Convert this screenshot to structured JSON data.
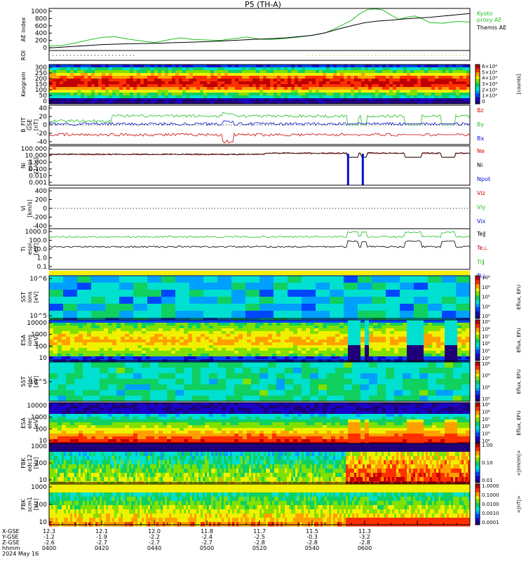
{
  "header": {
    "title": "P5 (TH-A)"
  },
  "panels": [
    {
      "key": "ae",
      "ylabel": "AE index",
      "ticks": [
        "1000",
        "800",
        "600",
        "400",
        "200",
        "0"
      ],
      "right_labels": [
        {
          "text": "Kyoto\nproxy AE",
          "color": "#22c022"
        },
        {
          "text": "Themis AE",
          "color": "#000000"
        }
      ]
    },
    {
      "key": "roi",
      "ylabel": "ROI",
      "ticks": [],
      "right_labels": []
    },
    {
      "key": "keogram",
      "ylabel": "Keogram",
      "ticks": [
        "300",
        "250",
        "200",
        "150",
        "100",
        "50",
        "0"
      ],
      "right_labels": []
    },
    {
      "key": "bfit",
      "ylabel": "B_FIT\nGSE\n[nT]",
      "ticks": [
        "40",
        "20",
        "0",
        "-20",
        "-40"
      ],
      "right_labels": [
        {
          "text": "Bz",
          "color": "#d00000"
        },
        {
          "text": "By",
          "color": "#22c022"
        },
        {
          "text": "Bx",
          "color": "#0010d0"
        }
      ]
    },
    {
      "key": "ni",
      "ylabel": "Ni\nespi\n[1/cc]",
      "ticks": [
        "100.000",
        "10.000",
        "1.000",
        "0.100",
        "0.010",
        "0.001"
      ],
      "right_labels": [
        {
          "text": "Ne",
          "color": "#d00000"
        },
        {
          "text": "Ni",
          "color": "#000000"
        },
        {
          "text": "Npot",
          "color": "#0010d0"
        }
      ]
    },
    {
      "key": "vi",
      "ylabel": "Vi\n[km/s]",
      "ticks": [
        "400",
        "200",
        "0",
        "-200",
        "-400"
      ],
      "right_labels": [
        {
          "text": "Viz",
          "color": "#d00000"
        },
        {
          "text": "Viy",
          "color": "#22c022"
        },
        {
          "text": "Vix",
          "color": "#0010d0"
        }
      ]
    },
    {
      "key": "ti",
      "ylabel": "Ti\nespi\n[eV]",
      "ticks": [
        "1000.0",
        "100.0",
        "10.0",
        "1.0",
        "0.1"
      ],
      "right_labels": [
        {
          "text": "Te‖",
          "color": "#000000"
        },
        {
          "text": "Te⊥",
          "color": "#d00000"
        },
        {
          "text": "Ti‖",
          "color": "#22c022"
        },
        {
          "text": "Ti⊥",
          "color": "#0010d0"
        }
      ]
    },
    {
      "key": "sst_e",
      "ylabel": "SST\nions\n[eV]",
      "ticks": [
        "10^6",
        "10^5"
      ],
      "right_labels": []
    },
    {
      "key": "esa_e",
      "ylabel": "ESA\nions\n[eV]",
      "ticks": [
        "10000",
        "1000",
        "100",
        "10"
      ],
      "right_labels": []
    },
    {
      "key": "sst_i",
      "ylabel": "SST\nelec\n[eV]",
      "ticks": [
        "10^5"
      ],
      "right_labels": []
    },
    {
      "key": "esa_i",
      "ylabel": "ESA\nelec\n[eV]",
      "ticks": [
        "10000",
        "1000",
        "100",
        "10"
      ],
      "right_labels": []
    },
    {
      "key": "fbk_e",
      "ylabel": "FBK\nedc12\n[Hz]",
      "ticks": [
        "1000",
        "100",
        "10"
      ],
      "right_labels": []
    },
    {
      "key": "fbk_b",
      "ylabel": "FBK\nscm1\n[Hz]",
      "ticks": [
        "1000",
        "100",
        "10"
      ],
      "right_labels": []
    }
  ],
  "colorbars": [
    {
      "key": "keogram",
      "labels": [
        "6×10⁴",
        "5×10⁴",
        "4×10⁴",
        "3×10⁴",
        "2×10⁴",
        "1×10⁴",
        "0"
      ],
      "unit": "[counts]"
    },
    {
      "key": "sst_e",
      "labels": [
        "10⁸",
        "10⁶",
        "10⁵",
        "10⁴",
        "10³"
      ],
      "unit": "Eflux, EFU"
    },
    {
      "key": "esa_e",
      "labels": [
        "10⁹",
        "10⁸",
        "10⁷",
        "10⁶",
        "10⁵",
        "10⁴"
      ],
      "unit": "Eflux, EFU"
    },
    {
      "key": "sst_i",
      "labels": [
        "10⁸",
        "10⁶",
        "10⁴",
        "10³"
      ],
      "unit": "Eflux, EFU"
    },
    {
      "key": "esa_i",
      "labels": [
        "10⁹",
        "10⁸",
        "10⁷",
        "10⁶",
        "10⁵",
        "10⁴"
      ],
      "unit": "Eflux, EFU"
    },
    {
      "key": "fbk_e",
      "labels": [
        "1.00",
        "0.10",
        "0.01"
      ],
      "unit": "<|mV/m|>"
    },
    {
      "key": "fbk_b",
      "labels": [
        "1.0000",
        "0.1000",
        "0.0100",
        "0.0010",
        "0.0001"
      ],
      "unit": "<|nT|>"
    }
  ],
  "xaxis": {
    "row_labels": [
      "X-GSE",
      "Y-GSE",
      "Z-GSE",
      "hhmm",
      "2024 May 16"
    ],
    "columns": [
      {
        "x": [
          "12.3",
          "-1.2",
          "-2.6",
          "0400"
        ]
      },
      {
        "x": [
          "12.1",
          "-1.9",
          "-2.7",
          "0420"
        ]
      },
      {
        "x": [
          "12.0",
          "-2.2",
          "-2.7",
          "0440"
        ]
      },
      {
        "x": [
          "11.8",
          "-2.4",
          "-2.7",
          "0500"
        ]
      },
      {
        "x": [
          "11.7",
          "-2.5",
          "-2.8",
          "0520"
        ]
      },
      {
        "x": [
          "11.5",
          "-0.3",
          "-2.8",
          "0540"
        ]
      },
      {
        "x": [
          "11.3",
          "-3.2",
          "-2.8",
          "0600"
        ]
      }
    ]
  },
  "chart_data": {
    "type": "line",
    "title": "P5 (TH-A)",
    "x_hhmm": [
      "0400",
      "0420",
      "0440",
      "0500",
      "0520",
      "0540",
      "0600"
    ],
    "ae_index": {
      "ylim": [
        0,
        1000
      ],
      "series": [
        {
          "name": "Kyoto proxy AE",
          "color": "#22c022",
          "points": [
            [
              0,
              110
            ],
            [
              5,
              120
            ],
            [
              10,
              180
            ],
            [
              15,
              250
            ],
            [
              20,
              310
            ],
            [
              25,
              330
            ],
            [
              30,
              270
            ],
            [
              35,
              230
            ],
            [
              40,
              190
            ],
            [
              45,
              250
            ],
            [
              50,
              300
            ],
            [
              55,
              260
            ],
            [
              60,
              250
            ],
            [
              65,
              240
            ],
            [
              70,
              280
            ],
            [
              75,
              320
            ],
            [
              80,
              270
            ],
            [
              85,
              260
            ],
            [
              90,
              290
            ],
            [
              95,
              320
            ],
            [
              100,
              360
            ],
            [
              105,
              420
            ],
            [
              110,
              560
            ],
            [
              115,
              720
            ],
            [
              118,
              870
            ],
            [
              121,
              970
            ],
            [
              124,
              990
            ],
            [
              127,
              960
            ],
            [
              130,
              840
            ],
            [
              133,
              740
            ],
            [
              136,
              790
            ],
            [
              139,
              820
            ],
            [
              142,
              750
            ],
            [
              145,
              660
            ],
            [
              150,
              650
            ],
            [
              155,
              690
            ],
            [
              160,
              680
            ]
          ]
        },
        {
          "name": "Themis AE",
          "color": "#000000",
          "points": [
            [
              0,
              60
            ],
            [
              10,
              100
            ],
            [
              20,
              140
            ],
            [
              30,
              160
            ],
            [
              40,
              170
            ],
            [
              50,
              190
            ],
            [
              60,
              210
            ],
            [
              70,
              240
            ],
            [
              80,
              270
            ],
            [
              90,
              300
            ],
            [
              100,
              360
            ],
            [
              105,
              420
            ],
            [
              110,
              510
            ],
            [
              115,
              590
            ],
            [
              120,
              660
            ],
            [
              125,
              700
            ],
            [
              130,
              720
            ],
            [
              135,
              750
            ],
            [
              140,
              770
            ],
            [
              145,
              790
            ],
            [
              150,
              820
            ],
            [
              155,
              850
            ],
            [
              160,
              880
            ]
          ]
        }
      ]
    },
    "b_fit": {
      "ylim": [
        -40,
        40
      ],
      "series": [
        {
          "name": "Bz",
          "color": "#d00000",
          "base": -20
        },
        {
          "name": "By",
          "color": "#22c022",
          "base": 18
        },
        {
          "name": "Bx",
          "color": "#0010d0",
          "base": 2
        }
      ]
    },
    "density": {
      "series": [
        {
          "name": "Ne",
          "color": "#d00000",
          "log10_value": 0.9
        },
        {
          "name": "Ni",
          "color": "#000000",
          "log10_value": 0.95
        },
        {
          "name": "Npot",
          "color": "#0010d0",
          "log10_value": 0.9
        }
      ]
    },
    "velocity": {
      "ylim": [
        -500,
        500
      ]
    },
    "temperature": {
      "series": [
        {
          "name": "Ti‖",
          "color": "#22c022",
          "log10_value": 2.4
        },
        {
          "name": "Te‖",
          "color": "#000000",
          "log10_value": 1.3
        }
      ]
    }
  },
  "colors": {
    "spectro": [
      "#20007a",
      "#1a00c8",
      "#0046ff",
      "#00a0ff",
      "#00e0d0",
      "#10d060",
      "#80e000",
      "#f0f000",
      "#ffa000",
      "#ff3000",
      "#c00000"
    ]
  }
}
